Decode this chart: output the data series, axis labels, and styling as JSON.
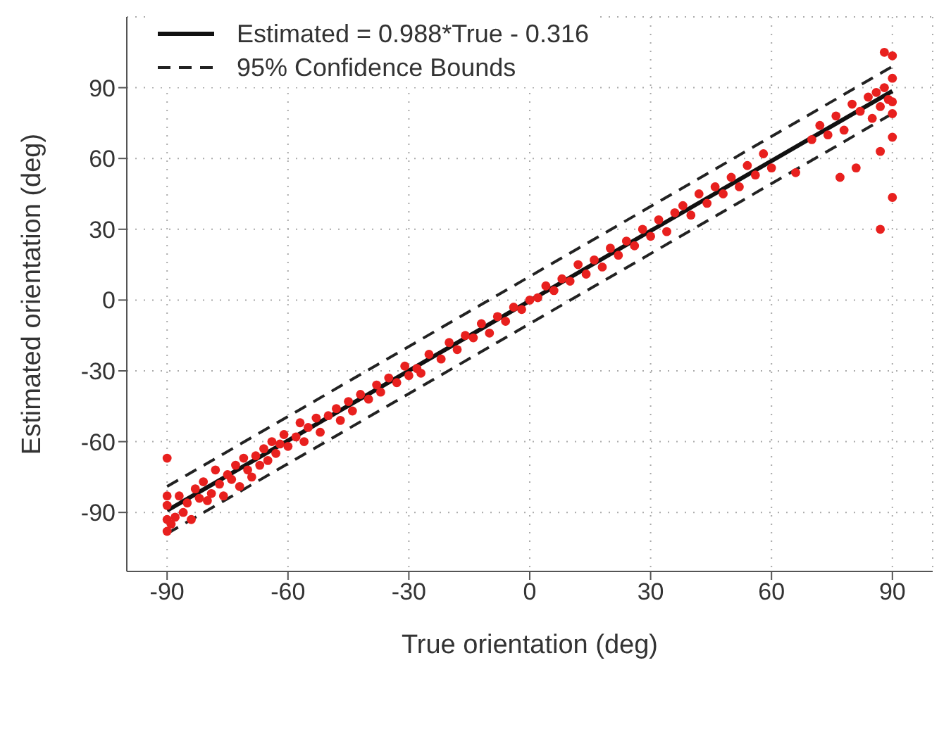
{
  "chart_data": {
    "type": "scatter",
    "xlabel": "True orientation (deg)",
    "ylabel": "Estimated orientation (deg)",
    "xlim": [
      -100,
      100
    ],
    "xticks": [
      -90,
      -60,
      -30,
      0,
      30,
      60,
      90
    ],
    "ylim": [
      -115,
      120
    ],
    "yticks": [
      -90,
      -60,
      -30,
      0,
      30,
      60,
      90
    ],
    "grid": true,
    "legend": "top left",
    "series": [
      {
        "marker": "circle",
        "color": "#e8201e",
        "x": [
          -90,
          -90,
          -90,
          -90,
          -90,
          -89,
          -88,
          -87,
          -86,
          -85,
          -84,
          -83,
          -82,
          -81,
          -80,
          -79,
          -78,
          -77,
          -76,
          -75,
          -74,
          -73,
          -72,
          -71,
          -70,
          -69,
          -68,
          -67,
          -66,
          -65,
          -64,
          -63,
          -62,
          -61,
          -60,
          -58,
          -57,
          -56,
          -55,
          -53,
          -52,
          -50,
          -48,
          -47,
          -45,
          -44,
          -42,
          -40,
          -38,
          -37,
          -35,
          -33,
          -31,
          -30,
          -28,
          -27,
          -25,
          -22,
          -20,
          -18,
          -16,
          -14,
          -12,
          -10,
          -8,
          -6,
          -4,
          -2,
          0,
          2,
          4,
          6,
          8,
          10,
          12,
          14,
          16,
          18,
          20,
          22,
          24,
          26,
          28,
          30,
          32,
          34,
          36,
          38,
          40,
          42,
          44,
          46,
          48,
          50,
          52,
          54,
          56,
          58,
          60,
          66,
          70,
          72,
          74,
          76,
          77,
          78,
          80,
          81,
          82,
          84,
          85,
          86,
          87,
          87,
          87,
          88,
          88,
          89,
          90,
          90,
          90,
          90,
          90,
          90
        ],
        "values": [
          -93,
          -98,
          -87,
          -83,
          -67,
          -95,
          -92,
          -83,
          -90,
          -86,
          -93,
          -80,
          -84,
          -77,
          -85,
          -82,
          -72,
          -78,
          -83,
          -74,
          -76,
          -70,
          -79,
          -67,
          -72,
          -75,
          -66,
          -70,
          -63,
          -68,
          -60,
          -65,
          -61,
          -57,
          -62,
          -58,
          -52,
          -60,
          -54,
          -50,
          -56,
          -49,
          -46,
          -51,
          -43,
          -47,
          -40,
          -42,
          -36,
          -39,
          -33,
          -35,
          -28,
          -32,
          -29,
          -31,
          -23,
          -25,
          -18,
          -21,
          -15,
          -16,
          -10,
          -14,
          -7,
          -9,
          -3,
          -4,
          0,
          1,
          6,
          4,
          9,
          8,
          15,
          11,
          17,
          14,
          22,
          19,
          25,
          23,
          30,
          27,
          34,
          29,
          37,
          40,
          36,
          45,
          41,
          48,
          45,
          52,
          48,
          57,
          53,
          62,
          56,
          54,
          68,
          74,
          70,
          78,
          52,
          72,
          83,
          56,
          80,
          86,
          77,
          88,
          82,
          63,
          30,
          90,
          105,
          85,
          103.5,
          94,
          69,
          43.5,
          79,
          84
        ]
      },
      {
        "type": "line",
        "name": "Estimated = 0.988*True - 0.316",
        "color": "#111111",
        "line_style": "solid",
        "marker": "none",
        "x": [
          -90,
          90
        ],
        "values": [
          -89.2,
          88.6
        ]
      },
      {
        "type": "line",
        "name": "95% Confidence Bounds",
        "color": "#222222",
        "line_style": "dashed",
        "marker": "none",
        "x": [
          -90,
          90
        ],
        "values": [
          -79,
          99
        ]
      },
      {
        "type": "line",
        "color": "#222222",
        "line_style": "dashed",
        "marker": "none",
        "x": [
          -90,
          90
        ],
        "values": [
          -99,
          79
        ]
      }
    ]
  }
}
